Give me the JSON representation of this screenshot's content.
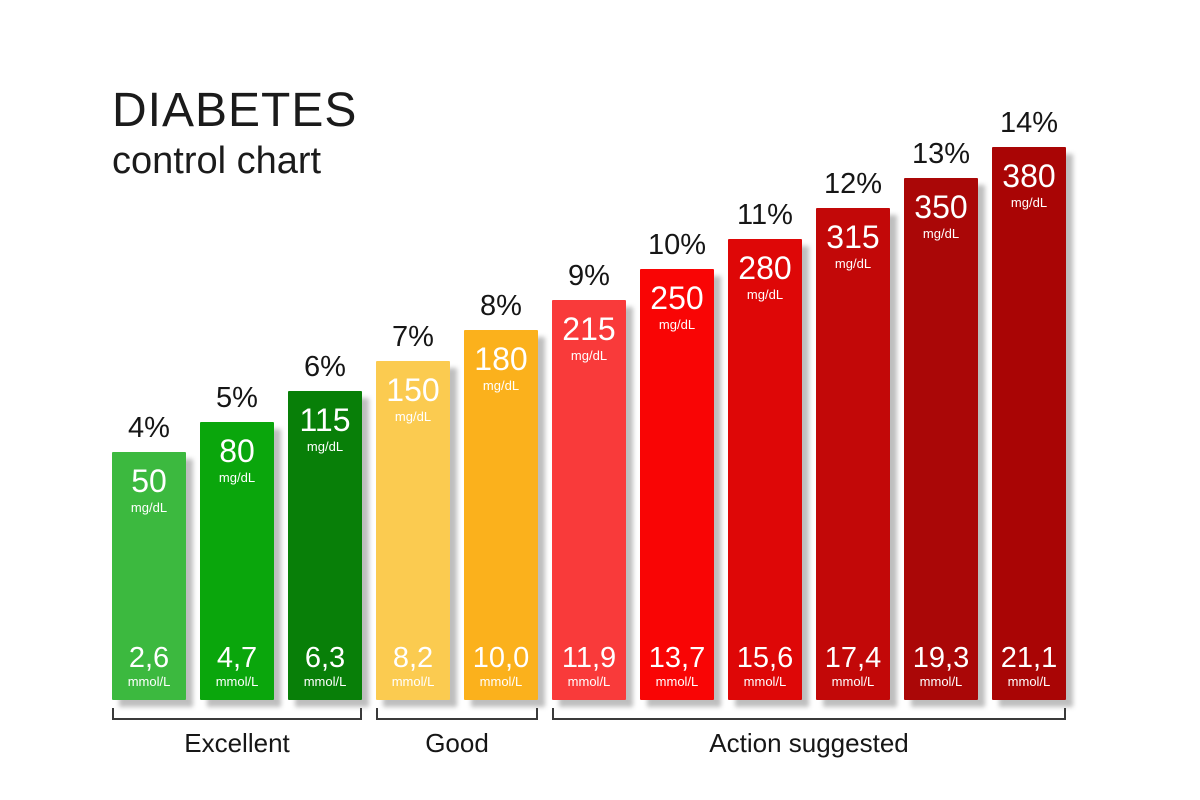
{
  "header": {
    "title": "DIABETES",
    "subtitle": "control chart"
  },
  "chart_data": {
    "type": "bar",
    "title": "DIABETES control chart",
    "legend": "none",
    "grid": false,
    "bars": [
      {
        "hba1c": 4,
        "hba1c_label": "4%",
        "mgdl": 50,
        "mgdl_label": "50",
        "mgdl_unit": "mg/dL",
        "mmol": 2.6,
        "mmol_label": "2,6",
        "mmol_unit": "mmol/L",
        "color": "#3cb93f",
        "category": "Excellent"
      },
      {
        "hba1c": 5,
        "hba1c_label": "5%",
        "mgdl": 80,
        "mgdl_label": "80",
        "mgdl_unit": "mg/dL",
        "mmol": 4.7,
        "mmol_label": "4,7",
        "mmol_unit": "mmol/L",
        "color": "#0aa60c",
        "category": "Excellent"
      },
      {
        "hba1c": 6,
        "hba1c_label": "6%",
        "mgdl": 115,
        "mgdl_label": "115",
        "mgdl_unit": "mg/dL",
        "mmol": 6.3,
        "mmol_label": "6,3",
        "mmol_unit": "mmol/L",
        "color": "#087f08",
        "category": "Excellent"
      },
      {
        "hba1c": 7,
        "hba1c_label": "7%",
        "mgdl": 150,
        "mgdl_label": "150",
        "mgdl_unit": "mg/dL",
        "mmol": 8.2,
        "mmol_label": "8,2",
        "mmol_unit": "mmol/L",
        "color": "#fbcb50",
        "category": "Good"
      },
      {
        "hba1c": 8,
        "hba1c_label": "8%",
        "mgdl": 180,
        "mgdl_label": "180",
        "mgdl_unit": "mg/dL",
        "mmol": 10.0,
        "mmol_label": "10,0",
        "mmol_unit": "mmol/L",
        "color": "#fbb11c",
        "category": "Good"
      },
      {
        "hba1c": 9,
        "hba1c_label": "9%",
        "mgdl": 215,
        "mgdl_label": "215",
        "mgdl_unit": "mg/dL",
        "mmol": 11.9,
        "mmol_label": "11,9",
        "mmol_unit": "mmol/L",
        "color": "#f93a3a",
        "category": "Action suggested"
      },
      {
        "hba1c": 10,
        "hba1c_label": "10%",
        "mgdl": 250,
        "mgdl_label": "250",
        "mgdl_unit": "mg/dL",
        "mmol": 13.7,
        "mmol_label": "13,7",
        "mmol_unit": "mmol/L",
        "color": "#f90505",
        "category": "Action suggested"
      },
      {
        "hba1c": 11,
        "hba1c_label": "11%",
        "mgdl": 280,
        "mgdl_label": "280",
        "mgdl_unit": "mg/dL",
        "mmol": 15.6,
        "mmol_label": "15,6",
        "mmol_unit": "mmol/L",
        "color": "#de0707",
        "category": "Action suggested"
      },
      {
        "hba1c": 12,
        "hba1c_label": "12%",
        "mgdl": 315,
        "mgdl_label": "315",
        "mgdl_unit": "mg/dL",
        "mmol": 17.4,
        "mmol_label": "17,4",
        "mmol_unit": "mmol/L",
        "color": "#c20808",
        "category": "Action suggested"
      },
      {
        "hba1c": 13,
        "hba1c_label": "13%",
        "mgdl": 350,
        "mgdl_label": "350",
        "mgdl_unit": "mg/dL",
        "mmol": 19.3,
        "mmol_label": "19,3",
        "mmol_unit": "mmol/L",
        "color": "#aa0707",
        "category": "Action suggested"
      },
      {
        "hba1c": 14,
        "hba1c_label": "14%",
        "mgdl": 380,
        "mgdl_label": "380",
        "mgdl_unit": "mg/dL",
        "mmol": 21.1,
        "mmol_label": "21,1",
        "mmol_unit": "mmol/L",
        "color": "#a90505",
        "category": "Action suggested"
      }
    ],
    "groups": [
      {
        "label": "Excellent",
        "start": 0,
        "end": 2
      },
      {
        "label": "Good",
        "start": 3,
        "end": 4
      },
      {
        "label": "Action suggested",
        "start": 5,
        "end": 10
      }
    ],
    "x_range": [
      4,
      14
    ],
    "bar_value_range_mgdl": [
      50,
      380
    ]
  }
}
